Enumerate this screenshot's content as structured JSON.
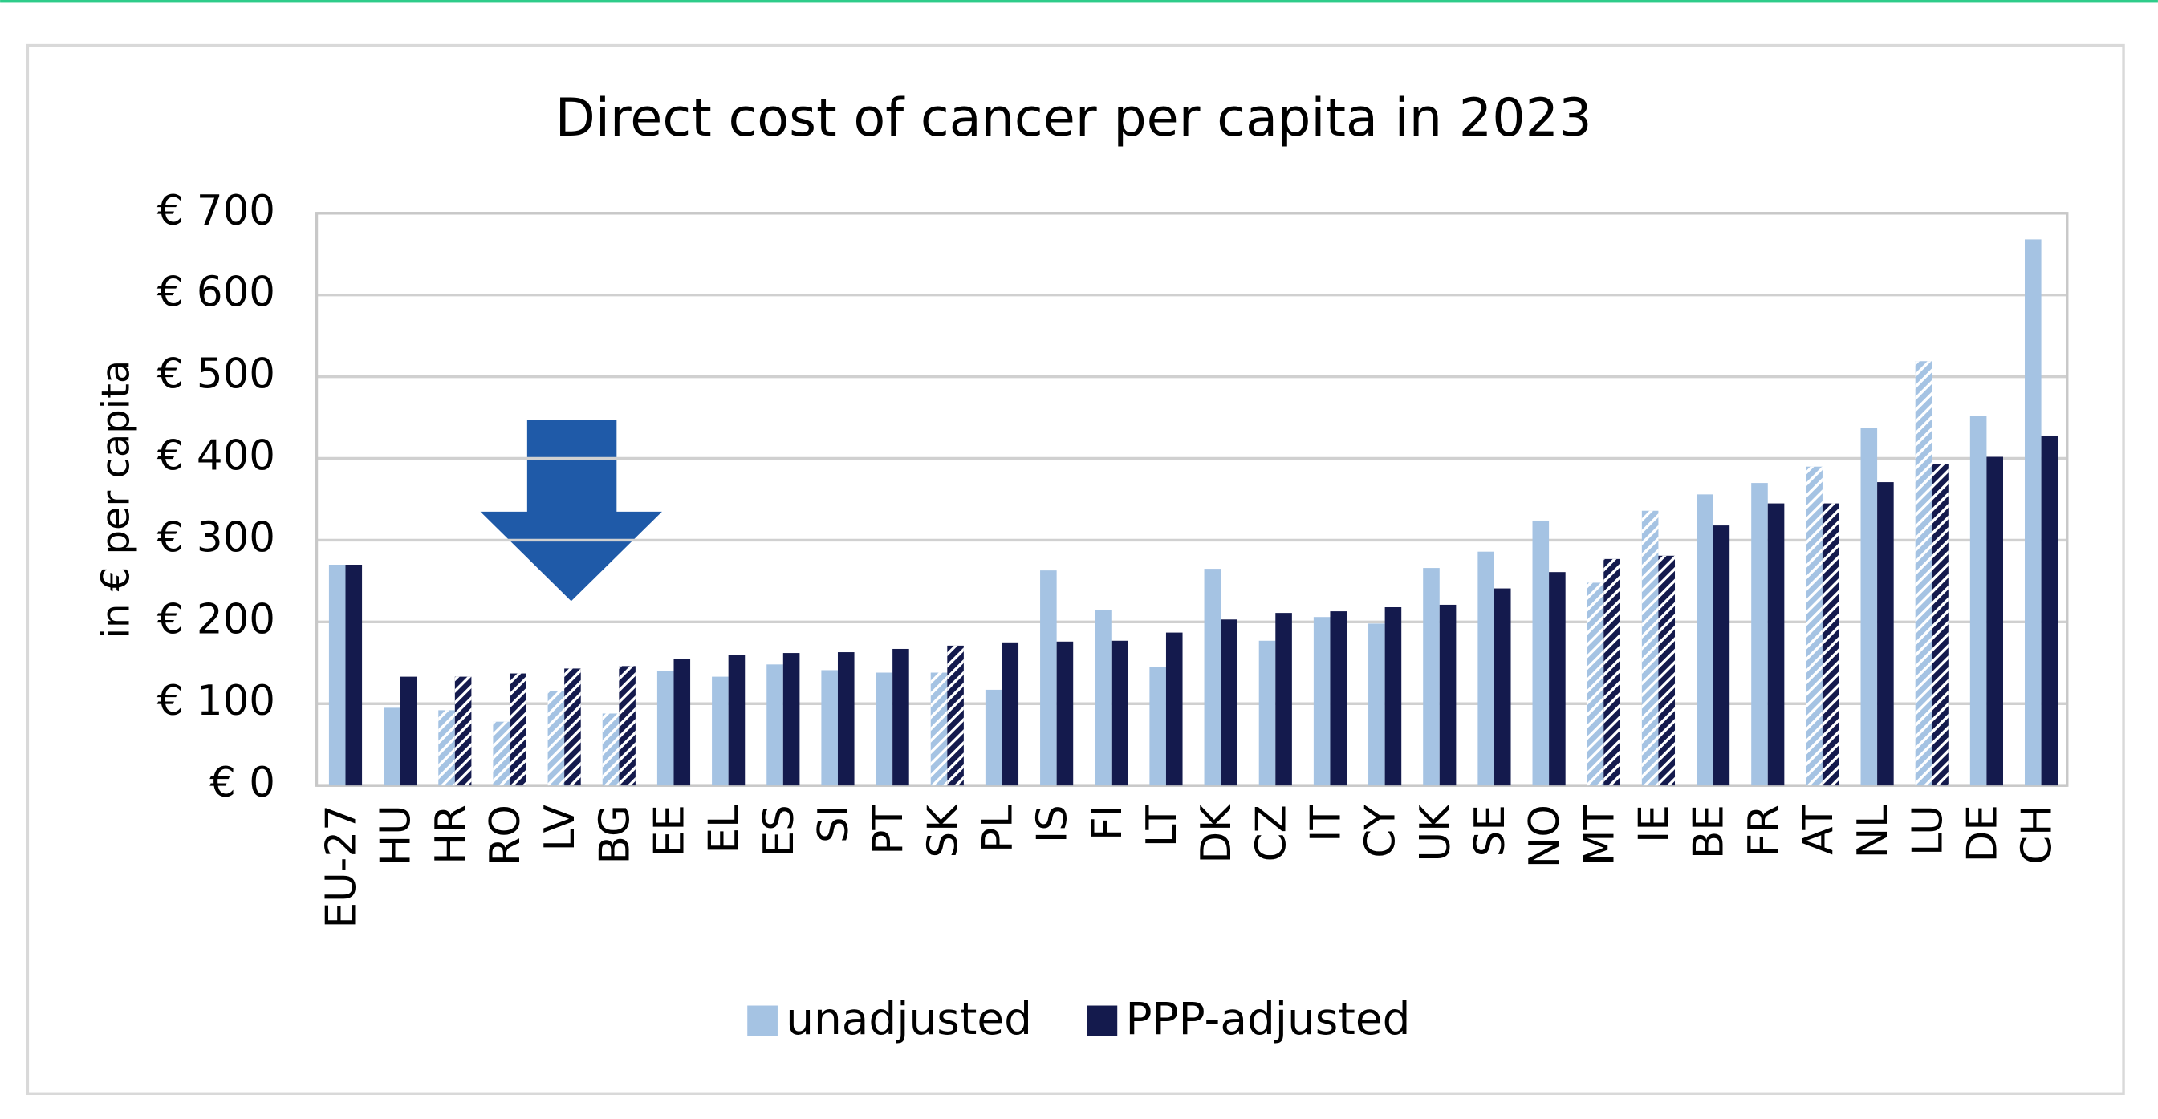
{
  "chart_data": {
    "type": "bar",
    "title": "Direct cost of cancer per capita in 2023",
    "y_label": "in € per capita",
    "categories": [
      "EU-27",
      "HU",
      "HR",
      "RO",
      "LV",
      "BG",
      "EE",
      "EL",
      "ES",
      "SI",
      "PT",
      "SK",
      "PL",
      "IS",
      "FI",
      "LT",
      "DK",
      "CZ",
      "IT",
      "CY",
      "UK",
      "SE",
      "NO",
      "MT",
      "IE",
      "BE",
      "FR",
      "AT",
      "NL",
      "LU",
      "DE",
      "CH"
    ],
    "series": [
      {
        "name": "unadjusted",
        "color": "#a5c3e3",
        "values": [
          270,
          95,
          92,
          78,
          115,
          88,
          140,
          133,
          148,
          141,
          138,
          138,
          117,
          263,
          215,
          145,
          265,
          177,
          206,
          198,
          266,
          286,
          324,
          248,
          336,
          356,
          370,
          390,
          437,
          519,
          452,
          668
        ]
      },
      {
        "name": "PPP-adjusted",
        "color": "#141a4d",
        "values": [
          270,
          133,
          133,
          137,
          143,
          146,
          155,
          160,
          162,
          163,
          167,
          171,
          175,
          176,
          177,
          187,
          203,
          211,
          213,
          218,
          221,
          241,
          261,
          277,
          281,
          318,
          345,
          345,
          371,
          393,
          402,
          428
        ]
      }
    ],
    "hatched": [
      2,
      3,
      4,
      5,
      11,
      23,
      24,
      27,
      29
    ],
    "ylim": [
      0,
      700
    ],
    "yticks": [
      {
        "value": 0,
        "label": "€ 0"
      },
      {
        "value": 100,
        "label": "€ 100"
      },
      {
        "value": 200,
        "label": "€ 200"
      },
      {
        "value": 300,
        "label": "€ 300"
      },
      {
        "value": 400,
        "label": "€ 400"
      },
      {
        "value": 500,
        "label": "€ 500"
      },
      {
        "value": 600,
        "label": "€ 600"
      },
      {
        "value": 700,
        "label": "€ 700"
      }
    ],
    "grid": true,
    "legend": "bottom"
  }
}
